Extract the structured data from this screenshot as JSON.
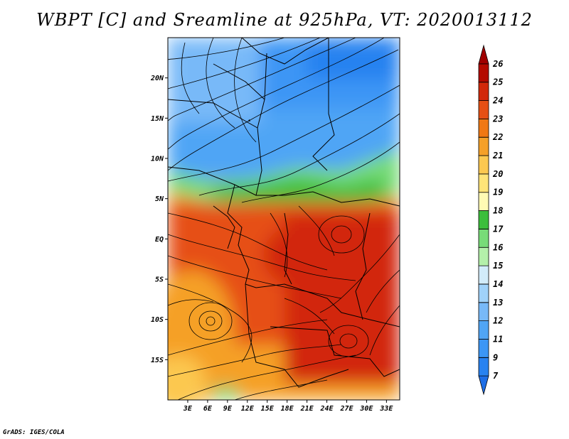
{
  "title": "WBPT [C] and Sreamline at 925hPa, VT: 2020013112",
  "credit": "GrADS: IGES/COLA",
  "map": {
    "lon_range": [
      0,
      35
    ],
    "lat_range": [
      -20,
      25
    ],
    "lat_ticks": [
      {
        "lat": 20,
        "label": "20N"
      },
      {
        "lat": 15,
        "label": "15N"
      },
      {
        "lat": 10,
        "label": "10N"
      },
      {
        "lat": 5,
        "label": "5N"
      },
      {
        "lat": 0,
        "label": "EQ"
      },
      {
        "lat": -5,
        "label": "5S"
      },
      {
        "lat": -10,
        "label": "10S"
      },
      {
        "lat": -15,
        "label": "15S"
      }
    ],
    "lon_ticks": [
      {
        "lon": 3,
        "label": "3E"
      },
      {
        "lon": 6,
        "label": "6E"
      },
      {
        "lon": 9,
        "label": "9E"
      },
      {
        "lon": 12,
        "label": "12E"
      },
      {
        "lon": 15,
        "label": "15E"
      },
      {
        "lon": 18,
        "label": "18E"
      },
      {
        "lon": 21,
        "label": "21E"
      },
      {
        "lon": 24,
        "label": "24E"
      },
      {
        "lon": 27,
        "label": "27E"
      },
      {
        "lon": 30,
        "label": "30E"
      },
      {
        "lon": 33,
        "label": "33E"
      }
    ]
  },
  "colorbar": {
    "labels": [
      "7",
      "9",
      "11",
      "12",
      "13",
      "14",
      "15",
      "16",
      "17",
      "18",
      "19",
      "20",
      "21",
      "22",
      "23",
      "24",
      "25",
      "26"
    ],
    "colors": [
      "#1e6ee6",
      "#2882f0",
      "#3c96f5",
      "#50a5f5",
      "#78b9f8",
      "#a0d2fa",
      "#d2ecfa",
      "#b4f0aa",
      "#78dc78",
      "#3cbe3c",
      "#fffab4",
      "#ffe478",
      "#fcc850",
      "#f5a028",
      "#f07814",
      "#e65014",
      "#d2280a",
      "#b40a00",
      "#a00000"
    ]
  }
}
